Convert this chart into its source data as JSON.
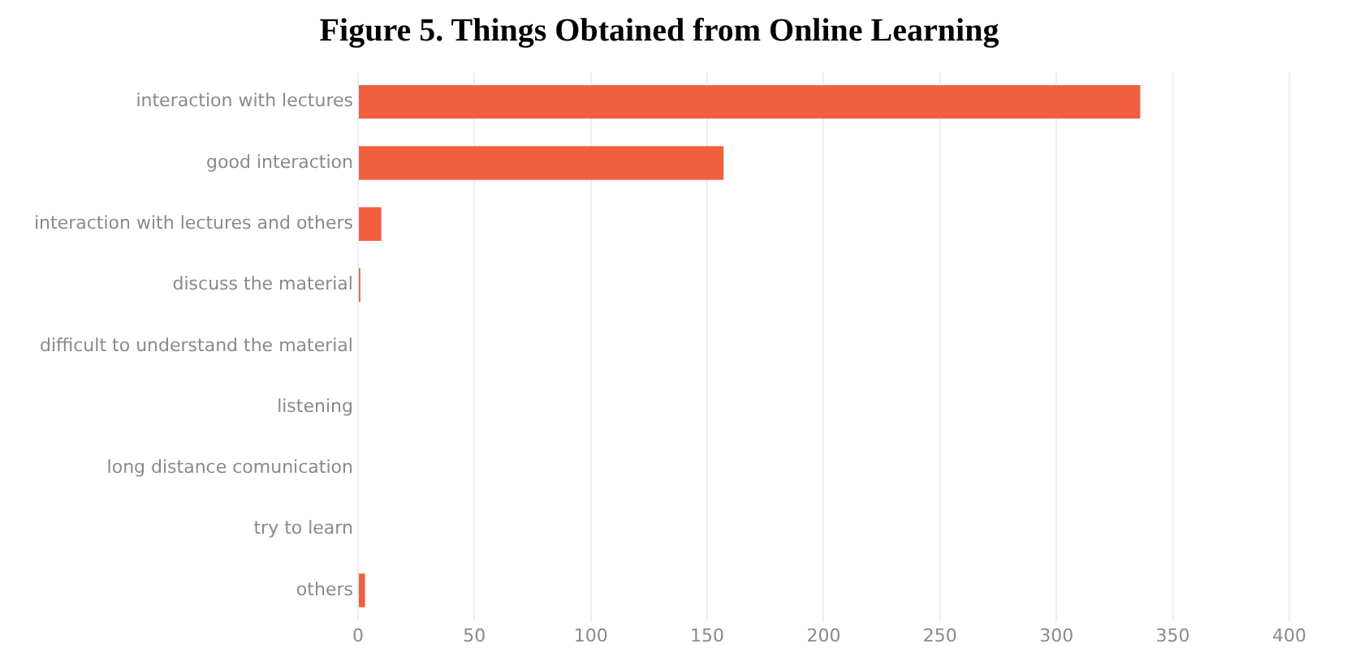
{
  "chart_data": {
    "type": "bar",
    "orientation": "horizontal",
    "title": "Figure 5. Things Obtained from Online Learning",
    "categories": [
      "interaction with lectures",
      "good interaction",
      "interaction with lectures and others",
      "discuss the material",
      "difficult to understand the material",
      "listening",
      "long distance comunication",
      "try to learn",
      "others"
    ],
    "values": [
      336,
      157,
      10,
      1,
      0,
      0,
      0,
      0,
      3
    ],
    "color": "#f0603f",
    "xlim": [
      0,
      400
    ],
    "xticks": [
      0,
      50,
      100,
      150,
      200,
      250,
      300,
      350,
      400
    ],
    "grid": "x"
  }
}
